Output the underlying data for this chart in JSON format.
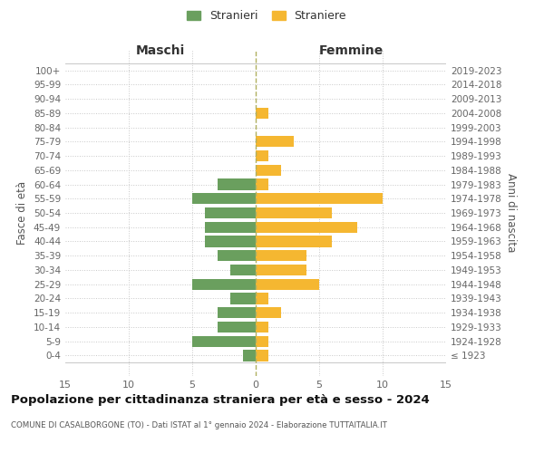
{
  "age_groups": [
    "100+",
    "95-99",
    "90-94",
    "85-89",
    "80-84",
    "75-79",
    "70-74",
    "65-69",
    "60-64",
    "55-59",
    "50-54",
    "45-49",
    "40-44",
    "35-39",
    "30-34",
    "25-29",
    "20-24",
    "15-19",
    "10-14",
    "5-9",
    "0-4"
  ],
  "birth_years": [
    "≤ 1923",
    "1924-1928",
    "1929-1933",
    "1934-1938",
    "1939-1943",
    "1944-1948",
    "1949-1953",
    "1954-1958",
    "1959-1963",
    "1964-1968",
    "1969-1973",
    "1974-1978",
    "1979-1983",
    "1984-1988",
    "1989-1993",
    "1994-1998",
    "1999-2003",
    "2004-2008",
    "2009-2013",
    "2014-2018",
    "2019-2023"
  ],
  "males": [
    0,
    0,
    0,
    0,
    0,
    0,
    0,
    0,
    3,
    5,
    4,
    4,
    4,
    3,
    2,
    5,
    2,
    3,
    3,
    5,
    1
  ],
  "females": [
    0,
    0,
    0,
    1,
    0,
    3,
    1,
    2,
    1,
    10,
    6,
    8,
    6,
    4,
    4,
    5,
    1,
    2,
    1,
    1,
    1
  ],
  "male_color": "#6a9f5e",
  "female_color": "#f5b731",
  "background_color": "#ffffff",
  "grid_color": "#c8c8c8",
  "title": "Popolazione per cittadinanza straniera per età e sesso - 2024",
  "subtitle": "COMUNE DI CASALBORGONE (TO) - Dati ISTAT al 1° gennaio 2024 - Elaborazione TUTTAITALIA.IT",
  "header_left": "Maschi",
  "header_right": "Femmine",
  "ylabel_left": "Fasce di età",
  "ylabel_right": "Anni di nascita",
  "xlim": 15,
  "legend_male": "Stranieri",
  "legend_female": "Straniere"
}
